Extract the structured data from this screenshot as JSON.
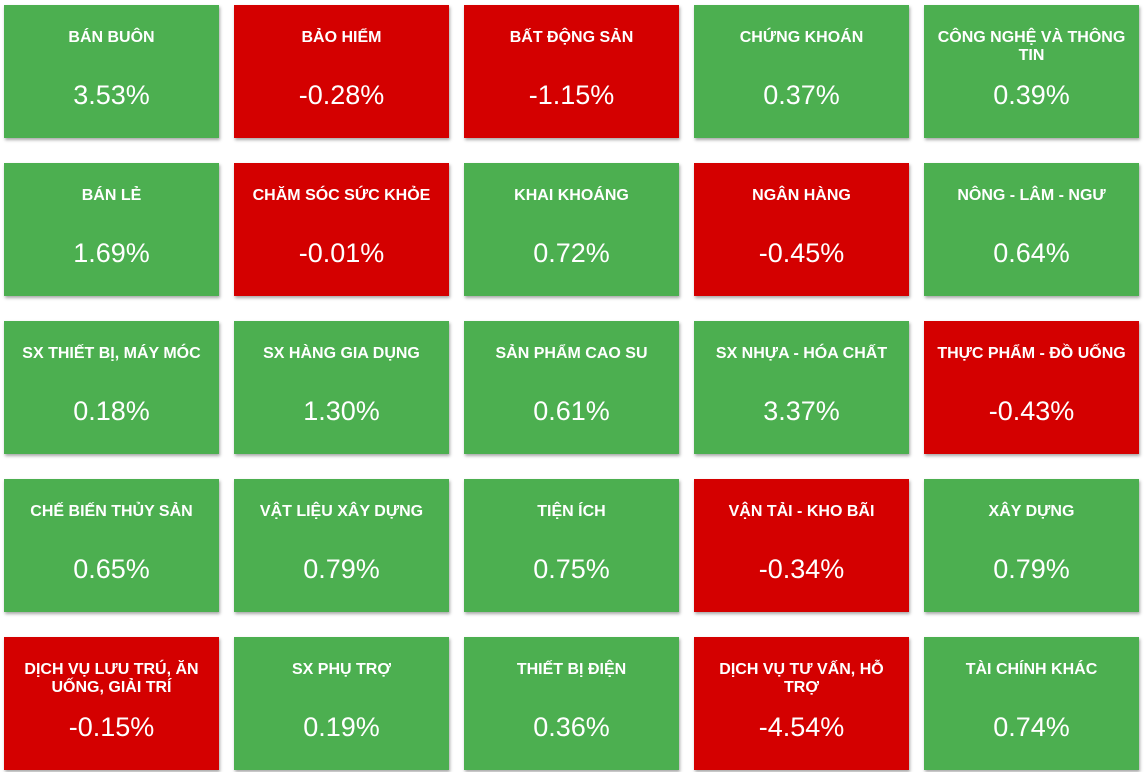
{
  "colors": {
    "positive": "#4caf50",
    "negative": "#d40000",
    "text": "#ffffff"
  },
  "sectors": [
    {
      "name": "BÁN BUÔN",
      "change": "3.53%",
      "trend": "up"
    },
    {
      "name": "BẢO HIỂM",
      "change": "-0.28%",
      "trend": "down"
    },
    {
      "name": "BẤT ĐỘNG SẢN",
      "change": "-1.15%",
      "trend": "down"
    },
    {
      "name": "CHỨNG KHOÁN",
      "change": "0.37%",
      "trend": "up"
    },
    {
      "name": "CÔNG NGHỆ VÀ THÔNG TIN",
      "change": "0.39%",
      "trend": "up"
    },
    {
      "name": "BÁN LẺ",
      "change": "1.69%",
      "trend": "up"
    },
    {
      "name": "CHĂM SÓC SỨC KHỎE",
      "change": "-0.01%",
      "trend": "down"
    },
    {
      "name": "KHAI KHOÁNG",
      "change": "0.72%",
      "trend": "up"
    },
    {
      "name": "NGÂN HÀNG",
      "change": "-0.45%",
      "trend": "down"
    },
    {
      "name": "NÔNG - LÂM - NGƯ",
      "change": "0.64%",
      "trend": "up"
    },
    {
      "name": "SX THIẾT BỊ, MÁY MÓC",
      "change": "0.18%",
      "trend": "up"
    },
    {
      "name": "SX HÀNG GIA DỤNG",
      "change": "1.30%",
      "trend": "up"
    },
    {
      "name": "SẢN PHẨM CAO SU",
      "change": "0.61%",
      "trend": "up"
    },
    {
      "name": "SX NHỰA - HÓA CHẤT",
      "change": "3.37%",
      "trend": "up"
    },
    {
      "name": "THỰC PHẨM - ĐỒ UỐNG",
      "change": "-0.43%",
      "trend": "down"
    },
    {
      "name": "CHẾ BIẾN THỦY SẢN",
      "change": "0.65%",
      "trend": "up"
    },
    {
      "name": "VẬT LIỆU XÂY DỰNG",
      "change": "0.79%",
      "trend": "up"
    },
    {
      "name": "TIỆN ÍCH",
      "change": "0.75%",
      "trend": "up"
    },
    {
      "name": "VẬN TẢI - KHO BÃI",
      "change": "-0.34%",
      "trend": "down"
    },
    {
      "name": "XÂY DỰNG",
      "change": "0.79%",
      "trend": "up"
    },
    {
      "name": "DỊCH VỤ LƯU TRÚ, ĂN UỐNG, GIẢI TRÍ",
      "change": "-0.15%",
      "trend": "down"
    },
    {
      "name": "SX PHỤ TRỢ",
      "change": "0.19%",
      "trend": "up"
    },
    {
      "name": "THIẾT BỊ ĐIỆN",
      "change": "0.36%",
      "trend": "up"
    },
    {
      "name": "DỊCH VỤ TƯ VẤN, HỖ TRỢ",
      "change": "-4.54%",
      "trend": "down"
    },
    {
      "name": "TÀI CHÍNH KHÁC",
      "change": "0.74%",
      "trend": "up"
    }
  ]
}
